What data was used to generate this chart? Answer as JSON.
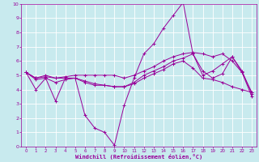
{
  "xlabel": "Windchill (Refroidissement éolien,°C)",
  "bg_color": "#c8eaee",
  "line_color": "#990099",
  "grid_color": "#ffffff",
  "xlim": [
    -0.5,
    23.5
  ],
  "ylim": [
    0,
    10
  ],
  "xticks": [
    0,
    1,
    2,
    3,
    4,
    5,
    6,
    7,
    8,
    9,
    10,
    11,
    12,
    13,
    14,
    15,
    16,
    17,
    18,
    19,
    20,
    21,
    22,
    23
  ],
  "yticks": [
    0,
    1,
    2,
    3,
    4,
    5,
    6,
    7,
    8,
    9,
    10
  ],
  "curves": [
    {
      "x": [
        0,
        1,
        2,
        3,
        4,
        5,
        6,
        7,
        8,
        9,
        10,
        11,
        12,
        13,
        14,
        15,
        16,
        17,
        18,
        19,
        20,
        21,
        22,
        23
      ],
      "y": [
        5.2,
        4.0,
        4.8,
        3.2,
        4.8,
        4.8,
        2.2,
        1.3,
        1.0,
        0.1,
        2.9,
        4.8,
        6.5,
        7.2,
        8.3,
        9.2,
        10.1,
        6.5,
        5.3,
        4.8,
        5.1,
        6.3,
        5.2,
        3.8
      ]
    },
    {
      "x": [
        0,
        1,
        2,
        3,
        4,
        5,
        6,
        7,
        8,
        9,
        10,
        11,
        12,
        13,
        14,
        15,
        16,
        17,
        18,
        19,
        20,
        21,
        22,
        23
      ],
      "y": [
        5.2,
        4.8,
        5.0,
        4.8,
        4.9,
        5.0,
        5.0,
        5.0,
        5.0,
        5.0,
        4.8,
        5.0,
        5.3,
        5.6,
        6.0,
        6.3,
        6.5,
        6.6,
        6.5,
        6.3,
        6.5,
        6.0,
        5.2,
        3.5
      ]
    },
    {
      "x": [
        0,
        1,
        2,
        3,
        4,
        5,
        6,
        7,
        8,
        9,
        10,
        11,
        12,
        13,
        14,
        15,
        16,
        17,
        18,
        19,
        20,
        21,
        22,
        23
      ],
      "y": [
        5.2,
        4.8,
        4.9,
        4.8,
        4.8,
        4.8,
        4.5,
        4.3,
        4.3,
        4.2,
        4.2,
        4.4,
        4.8,
        5.1,
        5.4,
        5.8,
        6.0,
        5.5,
        4.8,
        4.7,
        4.5,
        4.2,
        4.0,
        3.8
      ]
    },
    {
      "x": [
        0,
        1,
        2,
        3,
        4,
        5,
        6,
        7,
        8,
        9,
        10,
        11,
        12,
        13,
        14,
        15,
        16,
        17,
        18,
        19,
        20,
        21,
        22,
        23
      ],
      "y": [
        5.2,
        4.7,
        4.8,
        4.5,
        4.7,
        4.8,
        4.6,
        4.4,
        4.3,
        4.2,
        4.2,
        4.5,
        5.0,
        5.3,
        5.6,
        6.0,
        6.2,
        6.5,
        5.0,
        5.3,
        5.8,
        6.3,
        5.3,
        3.7
      ]
    }
  ]
}
